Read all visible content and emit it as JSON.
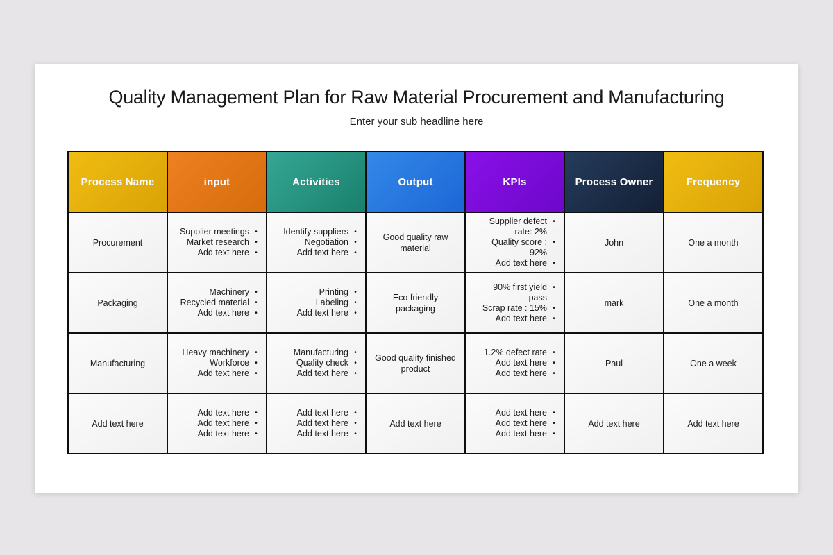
{
  "page": {
    "title": "Quality Management Plan for Raw Material Procurement and Manufacturing",
    "subtitle": "Enter your sub headline here"
  },
  "table": {
    "bullet_char": "•",
    "columns": [
      {
        "label": "Process Name",
        "color_top": "#f0bd12",
        "color_bottom": "#d9a306"
      },
      {
        "label": "input",
        "color_top": "#ee8122",
        "color_bottom": "#d66c0c"
      },
      {
        "label": "Activities",
        "color_top": "#35a794",
        "color_bottom": "#19806d"
      },
      {
        "label": "Output",
        "color_top": "#3489e8",
        "color_bottom": "#1c66d6"
      },
      {
        "label": "KPIs",
        "color_top": "#8a10e9",
        "color_bottom": "#6d08c9"
      },
      {
        "label": "Process Owner",
        "color_top": "#253c5c",
        "color_bottom": "#131f35"
      },
      {
        "label": "Frequency",
        "color_top": "#f0bd12",
        "color_bottom": "#d9a306"
      }
    ],
    "rows": [
      {
        "process_name": "Procurement",
        "input": [
          "Supplier meetings",
          "Market research",
          "Add text here"
        ],
        "activities": [
          "Identify suppliers",
          "Negotiation",
          "Add text here"
        ],
        "output": "Good quality raw material",
        "kpis": [
          "Supplier defect rate: 2%",
          "Quality score : 92%",
          "Add text here"
        ],
        "process_owner": "John",
        "frequency": "One a month"
      },
      {
        "process_name": "Packaging",
        "input": [
          "Machinery",
          "Recycled material",
          "Add text here"
        ],
        "activities": [
          "Printing",
          "Labeling",
          "Add text here"
        ],
        "output": "Eco friendly packaging",
        "kpis": [
          "90% first yield pass",
          "Scrap rate : 15%",
          "Add text here"
        ],
        "process_owner": "mark",
        "frequency": "One a month"
      },
      {
        "process_name": "Manufacturing",
        "input": [
          "Heavy machinery",
          "Workforce",
          "Add text here"
        ],
        "activities": [
          "Manufacturing",
          "Quality check",
          "Add text here"
        ],
        "output": "Good quality finished product",
        "kpis": [
          "1.2% defect rate",
          "Add text here",
          "Add text here"
        ],
        "process_owner": "Paul",
        "frequency": "One a week"
      },
      {
        "process_name": "Add text here",
        "input": [
          "Add text here",
          "Add text here",
          "Add text here"
        ],
        "activities": [
          "Add text here",
          "Add text here",
          "Add text here"
        ],
        "output": "Add text here",
        "kpis": [
          "Add text here",
          "Add text here",
          "Add text here"
        ],
        "process_owner": "Add text here",
        "frequency": "Add text here"
      }
    ]
  }
}
